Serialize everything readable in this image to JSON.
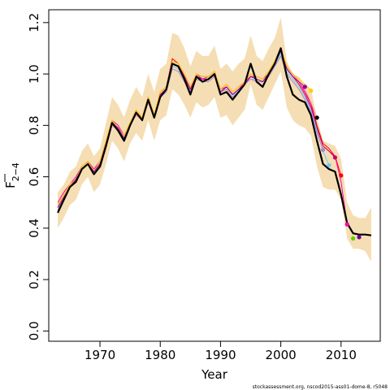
{
  "chart_data": {
    "type": "line",
    "xlabel": "Year",
    "ylabel_main": "F",
    "ylabel_sub": "2−4",
    "credit": "stockassessment.org, nscod2015-ass01-dome-8, r5048",
    "xlim": [
      1961.5,
      2016.5
    ],
    "ylim": [
      -0.04,
      1.25
    ],
    "x_ticks": [
      1970,
      1980,
      1990,
      2000,
      2010
    ],
    "y_ticks": [
      0.0,
      0.2,
      0.4,
      0.6,
      0.8,
      1.0,
      1.2
    ],
    "y_tick_labels": [
      "0.0",
      "0.2",
      "0.4",
      "0.6",
      "0.8",
      "1.0",
      "1.2"
    ],
    "confidence_band": {
      "color": "#f5deb3",
      "years": [
        1963,
        1964,
        1965,
        1966,
        1967,
        1968,
        1969,
        1970,
        1971,
        1972,
        1973,
        1974,
        1975,
        1976,
        1977,
        1978,
        1979,
        1980,
        1981,
        1982,
        1983,
        1984,
        1985,
        1986,
        1987,
        1988,
        1989,
        1990,
        1991,
        1992,
        1993,
        1994,
        1995,
        1996,
        1997,
        1998,
        1999,
        2000,
        2001,
        2002,
        2003,
        2004,
        2005,
        2006,
        2007,
        2008,
        2009,
        2010,
        2011,
        2012,
        2013,
        2014,
        2015
      ],
      "upper": [
        0.54,
        0.57,
        0.62,
        0.64,
        0.7,
        0.73,
        0.68,
        0.71,
        0.81,
        0.91,
        0.88,
        0.83,
        0.9,
        0.95,
        0.91,
        1.0,
        0.93,
        1.02,
        1.04,
        1.16,
        1.15,
        1.1,
        1.03,
        1.09,
        1.07,
        1.07,
        1.11,
        1.02,
        1.04,
        1.01,
        1.04,
        1.06,
        1.15,
        1.07,
        1.05,
        1.1,
        1.14,
        1.22,
        1.05,
        1.0,
        0.99,
        0.96,
        0.94,
        0.83,
        0.74,
        0.73,
        0.72,
        0.67,
        0.5,
        0.45,
        0.44,
        0.44,
        0.48
      ],
      "lower": [
        0.4,
        0.44,
        0.49,
        0.51,
        0.57,
        0.6,
        0.54,
        0.57,
        0.65,
        0.74,
        0.71,
        0.66,
        0.73,
        0.77,
        0.74,
        0.82,
        0.74,
        0.82,
        0.84,
        0.94,
        0.92,
        0.88,
        0.83,
        0.89,
        0.87,
        0.88,
        0.91,
        0.83,
        0.84,
        0.8,
        0.83,
        0.86,
        0.96,
        0.88,
        0.86,
        0.91,
        0.96,
        1.01,
        0.87,
        0.82,
        0.8,
        0.79,
        0.76,
        0.64,
        0.56,
        0.55,
        0.55,
        0.51,
        0.36,
        0.32,
        0.32,
        0.31,
        0.27
      ]
    },
    "series": [
      {
        "role": "final",
        "color": "#000000",
        "years": [
          1963,
          1964,
          1965,
          1966,
          1967,
          1968,
          1969,
          1970,
          1971,
          1972,
          1973,
          1974,
          1975,
          1976,
          1977,
          1978,
          1979,
          1980,
          1981,
          1982,
          1983,
          1984,
          1985,
          1986,
          1987,
          1988,
          1989,
          1990,
          1991,
          1992,
          1993,
          1994,
          1995,
          1996,
          1997,
          1998,
          1999,
          2000,
          2001,
          2002,
          2003,
          2004,
          2005,
          2006,
          2007,
          2008,
          2009,
          2010,
          2011,
          2012,
          2013,
          2014,
          2015
        ],
        "values": [
          0.46,
          0.51,
          0.56,
          0.58,
          0.63,
          0.65,
          0.61,
          0.64,
          0.72,
          0.81,
          0.78,
          0.74,
          0.8,
          0.85,
          0.82,
          0.9,
          0.83,
          0.91,
          0.94,
          1.04,
          1.03,
          0.98,
          0.92,
          0.99,
          0.97,
          0.98,
          1.0,
          0.92,
          0.93,
          0.9,
          0.93,
          0.96,
          1.04,
          0.97,
          0.95,
          1.0,
          1.04,
          1.1,
          0.99,
          0.92,
          0.9,
          0.89,
          0.84,
          0.74,
          0.65,
          0.63,
          0.62,
          0.53,
          0.42,
          0.38,
          0.375,
          0.375,
          0.372
        ]
      },
      {
        "role": "retro",
        "color": "#ff0000",
        "years": [
          1963,
          1964,
          1965,
          1966,
          1967,
          1968,
          1969,
          1970,
          1971,
          1972,
          1973,
          1974,
          1975,
          1976,
          1977,
          1978,
          1979,
          1980,
          1981,
          1982,
          1983,
          1984,
          1985,
          1986,
          1987,
          1988,
          1989,
          1990,
          1991,
          1992,
          1993,
          1994,
          1995,
          1996,
          1997,
          1998,
          1999,
          2000,
          2001,
          2002,
          2003,
          2004,
          2005,
          2006,
          2007,
          2008,
          2009,
          2010
        ],
        "values": [
          0.49,
          0.53,
          0.57,
          0.59,
          0.64,
          0.66,
          0.62,
          0.66,
          0.74,
          0.82,
          0.79,
          0.76,
          0.81,
          0.85,
          0.83,
          0.91,
          0.84,
          0.93,
          0.95,
          1.06,
          1.04,
          1.0,
          0.95,
          1.0,
          0.99,
          0.99,
          1.01,
          0.94,
          0.96,
          0.93,
          0.95,
          0.97,
          1.0,
          0.99,
          0.98,
          1.01,
          1.05,
          1.1,
          1.03,
          1.0,
          0.97,
          0.93,
          0.89,
          0.8,
          0.73,
          0.71,
          0.68,
          0.605
        ]
      },
      {
        "role": "retro",
        "color": "#ff00aa",
        "years": [
          1963,
          1964,
          1965,
          1966,
          1967,
          1968,
          1969,
          1970,
          1971,
          1972,
          1973,
          1974,
          1975,
          1976,
          1977,
          1978,
          1979,
          1980,
          1981,
          1982,
          1983,
          1984,
          1985,
          1986,
          1987,
          1988,
          1989,
          1990,
          1991,
          1992,
          1993,
          1994,
          1995,
          1996,
          1997,
          1998,
          1999,
          2000,
          2001,
          2002,
          2003,
          2004,
          2005,
          2006,
          2007,
          2008,
          2009,
          2010,
          2011
        ],
        "values": [
          0.5,
          0.54,
          0.57,
          0.6,
          0.64,
          0.66,
          0.63,
          0.66,
          0.73,
          0.82,
          0.8,
          0.76,
          0.81,
          0.86,
          0.83,
          0.91,
          0.84,
          0.92,
          0.95,
          1.05,
          1.04,
          0.99,
          0.94,
          1.0,
          0.98,
          0.99,
          1.01,
          0.94,
          0.95,
          0.92,
          0.94,
          0.97,
          0.99,
          0.99,
          0.98,
          1.0,
          1.04,
          1.09,
          1.02,
          0.99,
          0.97,
          0.93,
          0.88,
          0.79,
          0.72,
          0.7,
          0.68,
          0.58,
          0.415
        ]
      },
      {
        "role": "retro",
        "color": "#cc0066",
        "years": [
          1963,
          1964,
          1965,
          1966,
          1967,
          1968,
          1969,
          1970,
          1971,
          1972,
          1973,
          1974,
          1975,
          1976,
          1977,
          1978,
          1979,
          1980,
          1981,
          1982,
          1983,
          1984,
          1985,
          1986,
          1987,
          1988,
          1989,
          1990,
          1991,
          1992,
          1993,
          1994,
          1995,
          1996,
          1997,
          1998,
          1999,
          2000,
          2001,
          2002,
          2003,
          2004,
          2005,
          2006,
          2007,
          2008,
          2009
        ],
        "values": [
          0.48,
          0.52,
          0.56,
          0.59,
          0.63,
          0.65,
          0.62,
          0.65,
          0.73,
          0.81,
          0.79,
          0.75,
          0.8,
          0.85,
          0.82,
          0.9,
          0.83,
          0.92,
          0.94,
          1.04,
          1.03,
          0.99,
          0.94,
          0.99,
          0.98,
          0.98,
          1.0,
          0.93,
          0.95,
          0.92,
          0.94,
          0.96,
          0.99,
          0.98,
          0.97,
          1.0,
          1.04,
          1.09,
          1.02,
          0.99,
          0.96,
          0.92,
          0.87,
          0.79,
          0.72,
          0.7,
          0.675
        ]
      },
      {
        "role": "retro",
        "color": "#66ccff",
        "years": [
          1963,
          1964,
          1965,
          1966,
          1967,
          1968,
          1969,
          1970,
          1971,
          1972,
          1973,
          1974,
          1975,
          1976,
          1977,
          1978,
          1979,
          1980,
          1981,
          1982,
          1983,
          1984,
          1985,
          1986,
          1987,
          1988,
          1989,
          1990,
          1991,
          1992,
          1993,
          1994,
          1995,
          1996,
          1997,
          1998,
          1999,
          2000,
          2001,
          2002,
          2003,
          2004,
          2005,
          2006,
          2007,
          2008
        ],
        "values": [
          0.48,
          0.52,
          0.56,
          0.58,
          0.63,
          0.65,
          0.61,
          0.65,
          0.73,
          0.81,
          0.78,
          0.75,
          0.8,
          0.85,
          0.82,
          0.9,
          0.83,
          0.91,
          0.93,
          1.03,
          1.02,
          0.98,
          0.93,
          0.98,
          0.97,
          0.98,
          1.0,
          0.93,
          0.94,
          0.91,
          0.94,
          0.96,
          0.98,
          0.98,
          0.97,
          1.0,
          1.03,
          1.08,
          1.01,
          0.98,
          0.95,
          0.91,
          0.86,
          0.78,
          0.7,
          0.645
        ]
      },
      {
        "role": "retro",
        "color": "#aa88cc",
        "years": [
          1963,
          1964,
          1965,
          1966,
          1967,
          1968,
          1969,
          1970,
          1971,
          1972,
          1973,
          1974,
          1975,
          1976,
          1977,
          1978,
          1979,
          1980,
          1981,
          1982,
          1983,
          1984,
          1985,
          1986,
          1987,
          1988,
          1989,
          1990,
          1991,
          1992,
          1993,
          1994,
          1995,
          1996,
          1997,
          1998,
          1999,
          2000,
          2001,
          2002,
          2003,
          2004,
          2005,
          2006,
          2007
        ],
        "values": [
          0.47,
          0.52,
          0.56,
          0.58,
          0.63,
          0.65,
          0.61,
          0.65,
          0.72,
          0.8,
          0.78,
          0.75,
          0.8,
          0.84,
          0.82,
          0.89,
          0.83,
          0.91,
          0.93,
          1.02,
          1.01,
          0.97,
          0.93,
          0.98,
          0.97,
          0.97,
          0.99,
          0.93,
          0.94,
          0.91,
          0.93,
          0.96,
          0.98,
          0.97,
          0.97,
          0.99,
          1.03,
          1.07,
          1.0,
          0.97,
          0.94,
          0.9,
          0.85,
          0.77,
          0.705
        ]
      },
      {
        "role": "retro",
        "color": "#ff9999",
        "years": [
          1963,
          1964,
          1965,
          1966,
          1967,
          1968,
          1969,
          1970,
          1971,
          1972,
          1973,
          1974,
          1975,
          1976,
          1977,
          1978,
          1979,
          1980,
          1981,
          1982,
          1983,
          1984,
          1985,
          1986,
          1987,
          1988,
          1989,
          1990,
          1991,
          1992,
          1993,
          1994,
          1995,
          1996,
          1997,
          1998,
          1999,
          2000,
          2001,
          2002,
          2003,
          2004,
          2005,
          2006
        ],
        "values": [
          0.49,
          0.53,
          0.57,
          0.59,
          0.64,
          0.66,
          0.62,
          0.66,
          0.74,
          0.82,
          0.79,
          0.76,
          0.81,
          0.86,
          0.83,
          0.91,
          0.84,
          0.92,
          0.95,
          1.05,
          1.04,
          1.0,
          0.95,
          1.0,
          0.99,
          0.99,
          1.01,
          0.94,
          0.96,
          0.93,
          0.95,
          0.97,
          1.0,
          0.99,
          0.98,
          1.01,
          1.05,
          1.1,
          1.03,
          1.0,
          0.97,
          0.94,
          0.89,
          0.83
        ]
      },
      {
        "role": "retro",
        "color": "#ffcc00",
        "years": [
          1963,
          1964,
          1965,
          1966,
          1967,
          1968,
          1969,
          1970,
          1971,
          1972,
          1973,
          1974,
          1975,
          1976,
          1977,
          1978,
          1979,
          1980,
          1981,
          1982,
          1983,
          1984,
          1985,
          1986,
          1987,
          1988,
          1989,
          1990,
          1991,
          1992,
          1993,
          1994,
          1995,
          1996,
          1997,
          1998,
          1999,
          2000,
          2001,
          2002,
          2003,
          2004,
          2005
        ],
        "values": [
          0.49,
          0.53,
          0.57,
          0.59,
          0.64,
          0.66,
          0.62,
          0.66,
          0.74,
          0.82,
          0.79,
          0.76,
          0.81,
          0.86,
          0.83,
          0.91,
          0.84,
          0.93,
          0.95,
          1.05,
          1.04,
          1.0,
          0.95,
          1.0,
          0.99,
          0.99,
          1.01,
          0.94,
          0.96,
          0.93,
          0.95,
          0.97,
          1.0,
          0.99,
          0.98,
          1.01,
          1.05,
          1.1,
          1.03,
          1.0,
          0.98,
          0.96,
          0.935
        ]
      },
      {
        "role": "retro",
        "color": "#990099",
        "years": [
          1963,
          1964,
          1965,
          1966,
          1967,
          1968,
          1969,
          1970,
          1971,
          1972,
          1973,
          1974,
          1975,
          1976,
          1977,
          1978,
          1979,
          1980,
          1981,
          1982,
          1983,
          1984,
          1985,
          1986,
          1987,
          1988,
          1989,
          1990,
          1991,
          1992,
          1993,
          1994,
          1995,
          1996,
          1997,
          1998,
          1999,
          2000,
          2001,
          2002,
          2003,
          2004
        ],
        "values": [
          0.48,
          0.52,
          0.56,
          0.59,
          0.63,
          0.65,
          0.62,
          0.65,
          0.73,
          0.81,
          0.79,
          0.75,
          0.8,
          0.85,
          0.82,
          0.9,
          0.83,
          0.92,
          0.94,
          1.04,
          1.03,
          0.99,
          0.94,
          0.99,
          0.98,
          0.98,
          1.0,
          0.93,
          0.95,
          0.92,
          0.94,
          0.96,
          0.99,
          0.98,
          0.97,
          1.0,
          1.04,
          1.09,
          1.02,
          0.99,
          0.97,
          0.95
        ]
      }
    ],
    "end_points": [
      {
        "year": 2004,
        "value": 0.95,
        "color": "#990099"
      },
      {
        "year": 2005,
        "value": 0.935,
        "color": "#ffcc00"
      },
      {
        "year": 2006,
        "value": 0.83,
        "color": "#000000"
      },
      {
        "year": 2007,
        "value": 0.705,
        "color": "#aa88cc"
      },
      {
        "year": 2008,
        "value": 0.645,
        "color": "#66ccff"
      },
      {
        "year": 2009,
        "value": 0.675,
        "color": "#cc0066"
      },
      {
        "year": 2010,
        "value": 0.605,
        "color": "#ff0000"
      },
      {
        "year": 2011,
        "value": 0.415,
        "color": "#ff00aa"
      },
      {
        "year": 2012,
        "value": 0.36,
        "color": "#66cc00"
      },
      {
        "year": 2013,
        "value": 0.365,
        "color": "#660099"
      }
    ]
  }
}
